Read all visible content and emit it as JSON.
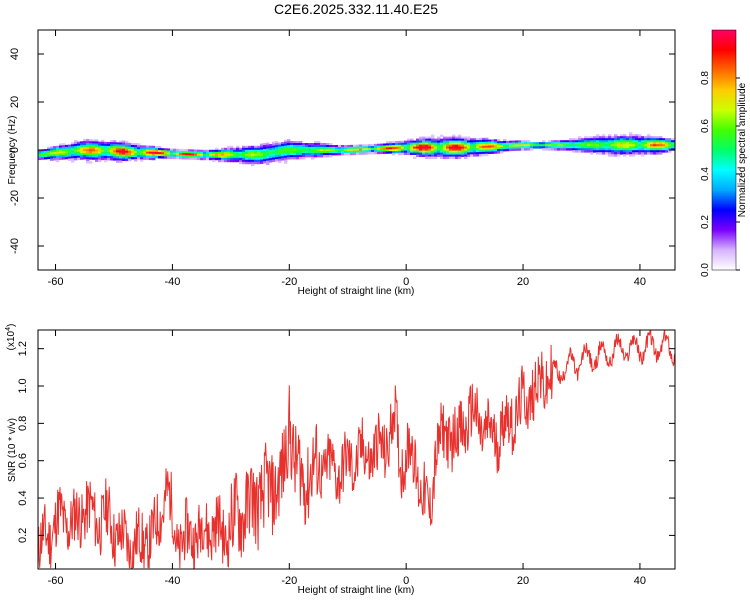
{
  "title": "C2E6.2025.332.11.40.E25",
  "colors": {
    "snr_line": "#e8302c",
    "colormap": [
      "#ffffff",
      "#d6b3ff",
      "#7a00ff",
      "#0000ff",
      "#00aaff",
      "#00ffff",
      "#00ff66",
      "#44ff00",
      "#ccff00",
      "#ffcc00",
      "#ff6600",
      "#ff0000",
      "#ff0066"
    ]
  },
  "chart_data": [
    {
      "type": "heatmap",
      "xlabel": "Height of straight line (km)",
      "ylabel": "Frequency (Hz)",
      "xlim": [
        -63,
        46
      ],
      "ylim": [
        -50,
        50
      ],
      "xticks": [
        -60,
        -40,
        -20,
        0,
        20,
        40
      ],
      "yticks": [
        -40,
        -20,
        0,
        20,
        40
      ],
      "xtick_labels": [
        "-60",
        "-40",
        "-20",
        "0",
        "20",
        "40"
      ],
      "ytick_labels": [
        "-40",
        "-20",
        "0",
        "20",
        "40"
      ],
      "colorbar": {
        "label": "Normalized spectral amplitude",
        "range": [
          0,
          1
        ],
        "ticks": [
          0.0,
          0.2,
          0.4,
          0.6,
          0.8
        ],
        "tick_labels": [
          "0.0",
          "0.2",
          "0.4",
          "0.6",
          "0.8"
        ]
      },
      "ridge": {
        "x": [
          -63,
          -55,
          -45,
          -35,
          -25,
          -20,
          -10,
          0,
          10,
          20,
          30,
          46
        ],
        "center_freq": [
          -2,
          0,
          -1,
          -2,
          -2,
          0,
          0,
          1,
          1,
          2,
          2,
          2
        ]
      }
    },
    {
      "type": "line",
      "xlabel": "Height of straight line (km)",
      "ylabel": "SNR (10 * v/v)",
      "y_multiplier": "(x10",
      "y_multiplier_exp": "4",
      "y_multiplier_close": ")",
      "xlim": [
        -63,
        46
      ],
      "ylim": [
        0.02,
        1.3
      ],
      "xticks": [
        -60,
        -40,
        -20,
        0,
        20,
        40
      ],
      "yticks": [
        0.2,
        0.4,
        0.6,
        0.8,
        1.0,
        1.2
      ],
      "xtick_labels": [
        "-60",
        "-40",
        "-20",
        "0",
        "20",
        "40"
      ],
      "ytick_labels": [
        "0.2",
        "0.4",
        "0.6",
        "0.8",
        "1.0",
        "1.2"
      ],
      "series": [
        {
          "x": [
            -63,
            -61,
            -59,
            -57,
            -55,
            -53,
            -51,
            -49,
            -47,
            -45,
            -43,
            -41,
            -39,
            -37,
            -35,
            -33,
            -31,
            -29,
            -27,
            -25,
            -23,
            -21,
            -20,
            -19,
            -17,
            -15,
            -13,
            -11,
            -9,
            -7,
            -5,
            -3,
            -2,
            -1,
            1,
            3,
            4,
            5,
            7,
            9,
            11,
            13,
            15,
            17,
            19,
            21,
            23,
            25,
            27,
            29,
            31,
            33,
            35,
            37,
            39,
            41,
            43,
            46
          ],
          "y": [
            0.12,
            0.22,
            0.3,
            0.25,
            0.35,
            0.28,
            0.3,
            0.18,
            0.15,
            0.16,
            0.2,
            0.45,
            0.15,
            0.2,
            0.22,
            0.25,
            0.2,
            0.3,
            0.35,
            0.4,
            0.45,
            0.5,
            0.85,
            0.55,
            0.5,
            0.58,
            0.55,
            0.55,
            0.6,
            0.63,
            0.65,
            0.7,
            0.85,
            0.6,
            0.65,
            0.4,
            0.3,
            0.65,
            0.75,
            0.72,
            0.85,
            0.78,
            0.72,
            0.8,
            0.85,
            0.95,
            1.02,
            1.05,
            1.1,
            1.12,
            1.15,
            1.16,
            1.18,
            1.2,
            1.2,
            1.21,
            1.21,
            1.2
          ]
        }
      ]
    }
  ]
}
